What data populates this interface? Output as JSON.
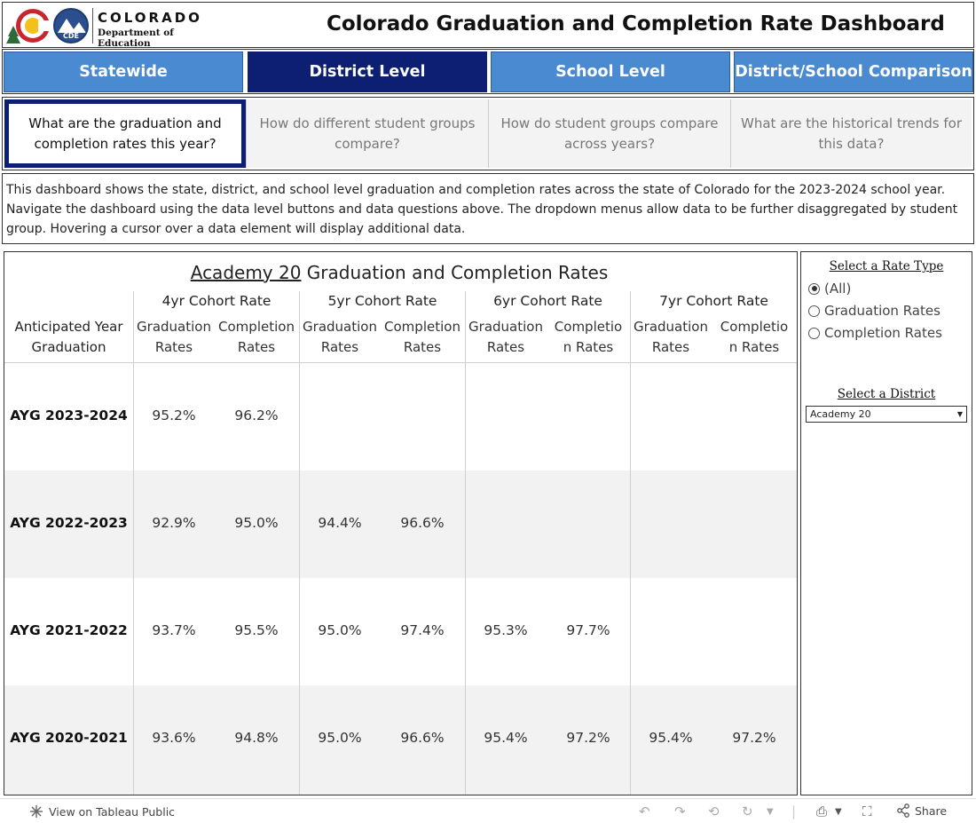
{
  "header": {
    "logo_line1": "COLORADO",
    "logo_line2": "Department of Education",
    "logo_badge": "CDE",
    "title": "Colorado Graduation and Completion Rate Dashboard"
  },
  "nav": {
    "buttons": [
      "Statewide",
      "District Level",
      "School Level",
      "District/School Comparison"
    ],
    "active_index": 1,
    "active_color": "#0c1f73",
    "inactive_color": "#4a8ad1"
  },
  "questions": {
    "tabs": [
      "What are the graduation and completion rates this year?",
      "How do different student groups compare?",
      "How do student groups compare across years?",
      "What are the historical trends for this data?"
    ],
    "active_index": 0
  },
  "description": "This dashboard shows the state, district, and school level graduation and completion rates across the state of Colorado for the 2023-2024 school year. Navigate the dashboard using the data level buttons and data questions above. The dropdown menus allow data to be further disaggregated by student group. Hovering a cursor over a data element will display additional data.",
  "table": {
    "district_name": "Academy 20",
    "title_suffix": " Graduation and Completion Rates",
    "row_header_line1": "Anticipated Year",
    "row_header_line2": "Graduation",
    "cohorts": [
      "4yr Cohort Rate",
      "5yr Cohort Rate",
      "6yr Cohort Rate",
      "7yr Cohort Rate"
    ],
    "sub_headers": [
      [
        "Graduation",
        "Rates"
      ],
      [
        "Completion",
        "Rates"
      ],
      [
        "Graduation",
        "Rates"
      ],
      [
        "Completion",
        "Rates"
      ],
      [
        "Graduation",
        "Rates"
      ],
      [
        "Completio",
        "n Rates"
      ],
      [
        "Graduation",
        "Rates"
      ],
      [
        "Completio",
        "n Rates"
      ]
    ],
    "rows": [
      {
        "label": "AYG 2023-2024",
        "values": [
          "95.2%",
          "96.2%",
          "",
          "",
          "",
          "",
          "",
          ""
        ]
      },
      {
        "label": "AYG 2022-2023",
        "values": [
          "92.9%",
          "95.0%",
          "94.4%",
          "96.6%",
          "",
          "",
          "",
          ""
        ]
      },
      {
        "label": "AYG 2021-2022",
        "values": [
          "93.7%",
          "95.5%",
          "95.0%",
          "97.4%",
          "95.3%",
          "97.7%",
          "",
          ""
        ]
      },
      {
        "label": "AYG 2020-2021",
        "values": [
          "93.6%",
          "94.8%",
          "95.0%",
          "96.6%",
          "95.4%",
          "97.2%",
          "95.4%",
          "97.2%"
        ]
      }
    ],
    "stripe_color": "#f2f2f2"
  },
  "filters": {
    "rate_type_title": "Select a Rate Type",
    "rate_options": [
      "(All)",
      "Graduation Rates",
      "Completion Rates"
    ],
    "rate_selected_index": 0,
    "district_title": "Select a District",
    "district_value": "Academy 20"
  },
  "footer": {
    "view_on": "View on Tableau Public",
    "share": "Share"
  }
}
